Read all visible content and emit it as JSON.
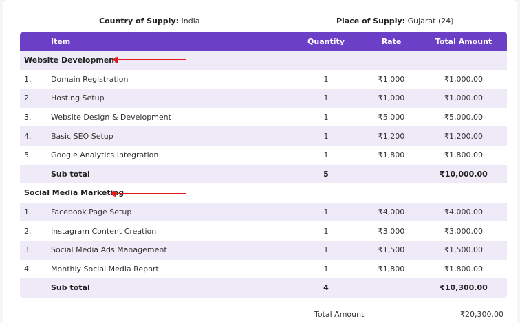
{
  "supply": {
    "country_label": "Country of Supply:",
    "country_value": "India",
    "place_label": "Place of Supply:",
    "place_value": "Gujarat (24)"
  },
  "table": {
    "headers": {
      "item": "Item",
      "quantity": "Quantity",
      "rate": "Rate",
      "total": "Total Amount"
    },
    "sections": [
      {
        "title": "Website Development",
        "items": [
          {
            "num": "1.",
            "name": "Domain Registration",
            "qty": "1",
            "rate": "₹1,000",
            "total": "₹1,000.00"
          },
          {
            "num": "2.",
            "name": "Hosting Setup",
            "qty": "1",
            "rate": "₹1,000",
            "total": "₹1,000.00"
          },
          {
            "num": "3.",
            "name": "Website Design & Development",
            "qty": "1",
            "rate": "₹5,000",
            "total": "₹5,000.00"
          },
          {
            "num": "4.",
            "name": "Basic SEO Setup",
            "qty": "1",
            "rate": "₹1,200",
            "total": "₹1,200.00"
          },
          {
            "num": "5.",
            "name": "Google Analytics Integration",
            "qty": "1",
            "rate": "₹1,800",
            "total": "₹1,800.00"
          }
        ],
        "subtotal": {
          "label": "Sub total",
          "qty": "5",
          "total": "₹10,000.00"
        }
      },
      {
        "title": "Social Media Marketing",
        "items": [
          {
            "num": "1.",
            "name": "Facebook Page Setup",
            "qty": "1",
            "rate": "₹4,000",
            "total": "₹4,000.00"
          },
          {
            "num": "2.",
            "name": "Instagram Content Creation",
            "qty": "1",
            "rate": "₹3,000",
            "total": "₹3,000.00"
          },
          {
            "num": "3.",
            "name": "Social Media Ads Management",
            "qty": "1",
            "rate": "₹1,500",
            "total": "₹1,500.00"
          },
          {
            "num": "4.",
            "name": "Monthly Social Media Report",
            "qty": "1",
            "rate": "₹1,800",
            "total": "₹1,800.00"
          }
        ],
        "subtotal": {
          "label": "Sub total",
          "qty": "4",
          "total": "₹10,300.00"
        }
      }
    ]
  },
  "summary": {
    "total_label": "Total Amount",
    "total_value": "₹20,300.00"
  },
  "colors": {
    "header_bg": "#6b3fc6",
    "alt_row_bg": "#eeeaf7",
    "arrow": "#e51b1b"
  }
}
